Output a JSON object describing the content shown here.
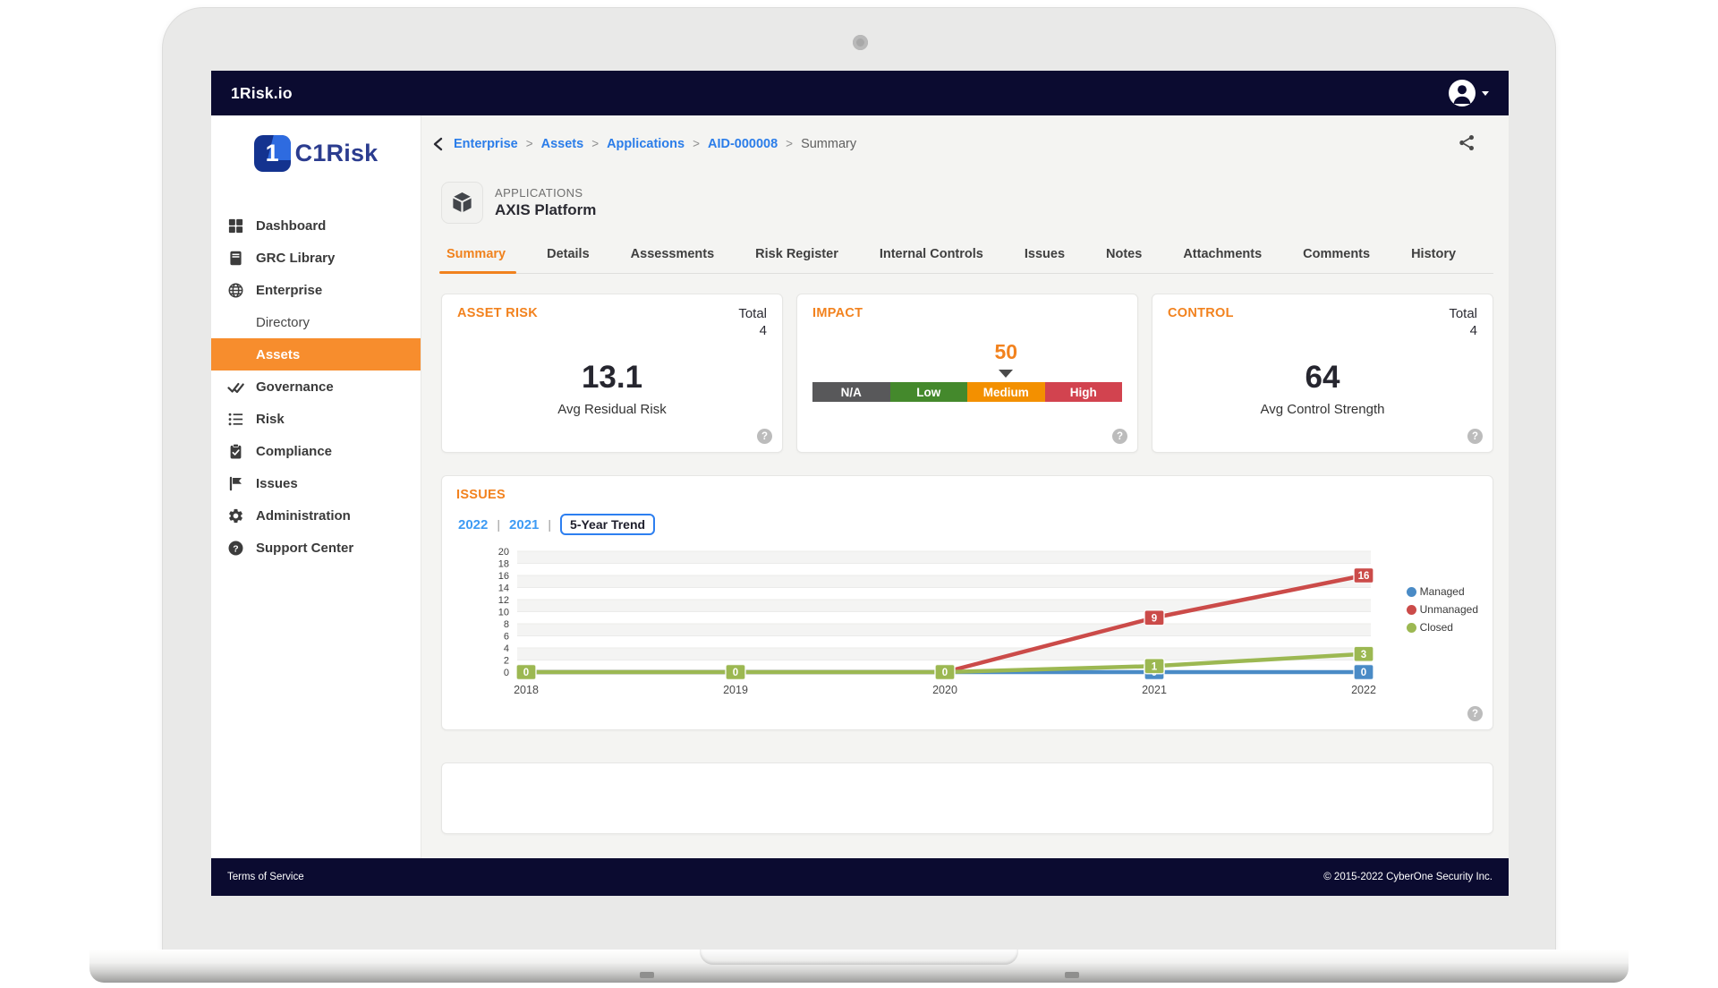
{
  "navbar": {
    "brand": "1Risk.io"
  },
  "sidebar": {
    "logo_mark": "1",
    "logo_text": "C1Risk",
    "items": [
      {
        "label": "Dashboard",
        "icon": "grid"
      },
      {
        "label": "GRC Library",
        "icon": "book"
      },
      {
        "label": "Enterprise",
        "icon": "globe"
      },
      {
        "label": "Directory",
        "icon": null,
        "sub": true
      },
      {
        "label": "Assets",
        "icon": null,
        "sub": true,
        "active": true
      },
      {
        "label": "Governance",
        "icon": "double-check"
      },
      {
        "label": "Risk",
        "icon": "list"
      },
      {
        "label": "Compliance",
        "icon": "clipboard-check"
      },
      {
        "label": "Issues",
        "icon": "flag"
      },
      {
        "label": "Administration",
        "icon": "gear"
      },
      {
        "label": "Support Center",
        "icon": "question-circle"
      }
    ]
  },
  "breadcrumb": {
    "links": [
      "Enterprise",
      "Assets",
      "Applications",
      "AID-000008"
    ],
    "current": "Summary",
    "separator": ">"
  },
  "page_header": {
    "category": "APPLICATIONS",
    "title": "AXIS Platform"
  },
  "tabs": {
    "active": "Summary",
    "labels": [
      "Summary",
      "Details",
      "Assessments",
      "Risk Register",
      "Internal Controls",
      "Issues",
      "Notes",
      "Attachments",
      "Comments",
      "History"
    ]
  },
  "cards": {
    "asset_risk": {
      "title": "ASSET RISK",
      "total_label": "Total",
      "total_value": "4",
      "metric": "13.1",
      "metric_label": "Avg Residual Risk"
    },
    "impact": {
      "title": "IMPACT",
      "value": "50",
      "pointer_segment_index": 2,
      "segments": [
        {
          "label": "N/A",
          "color": "#58585a"
        },
        {
          "label": "Low",
          "color": "#44892c"
        },
        {
          "label": "Medium",
          "color": "#f39000"
        },
        {
          "label": "High",
          "color": "#d2434f"
        }
      ]
    },
    "control": {
      "title": "CONTROL",
      "total_label": "Total",
      "total_value": "4",
      "metric": "64",
      "metric_label": "Avg Control Strength"
    }
  },
  "issues_panel": {
    "title": "ISSUES",
    "year_links": [
      "2022",
      "2021"
    ],
    "trend_button": "5-Year Trend"
  },
  "chart_data": {
    "type": "line",
    "title": "Issues 5-Year Trend",
    "x": [
      "2018",
      "2019",
      "2020",
      "2021",
      "2022"
    ],
    "ylim": [
      0,
      20
    ],
    "ytick_step": 2,
    "grid": true,
    "legend_position": "right",
    "series": [
      {
        "name": "Managed",
        "color": "#4a8bc6",
        "values": [
          0,
          0,
          0,
          0,
          0
        ],
        "labels": [
          null,
          null,
          null,
          0,
          0
        ]
      },
      {
        "name": "Unmanaged",
        "color": "#cb4b49",
        "values": [
          0,
          0,
          0,
          9,
          16
        ],
        "labels": [
          null,
          null,
          null,
          9,
          16
        ]
      },
      {
        "name": "Closed",
        "color": "#9cb852",
        "values": [
          0,
          0,
          0,
          1,
          3
        ],
        "labels": [
          0,
          0,
          0,
          1,
          3
        ]
      }
    ]
  },
  "icons": {
    "help_glyph": "?"
  },
  "footer": {
    "left": "Terms of Service",
    "right": "© 2015-2022 CyberOne Security Inc."
  }
}
